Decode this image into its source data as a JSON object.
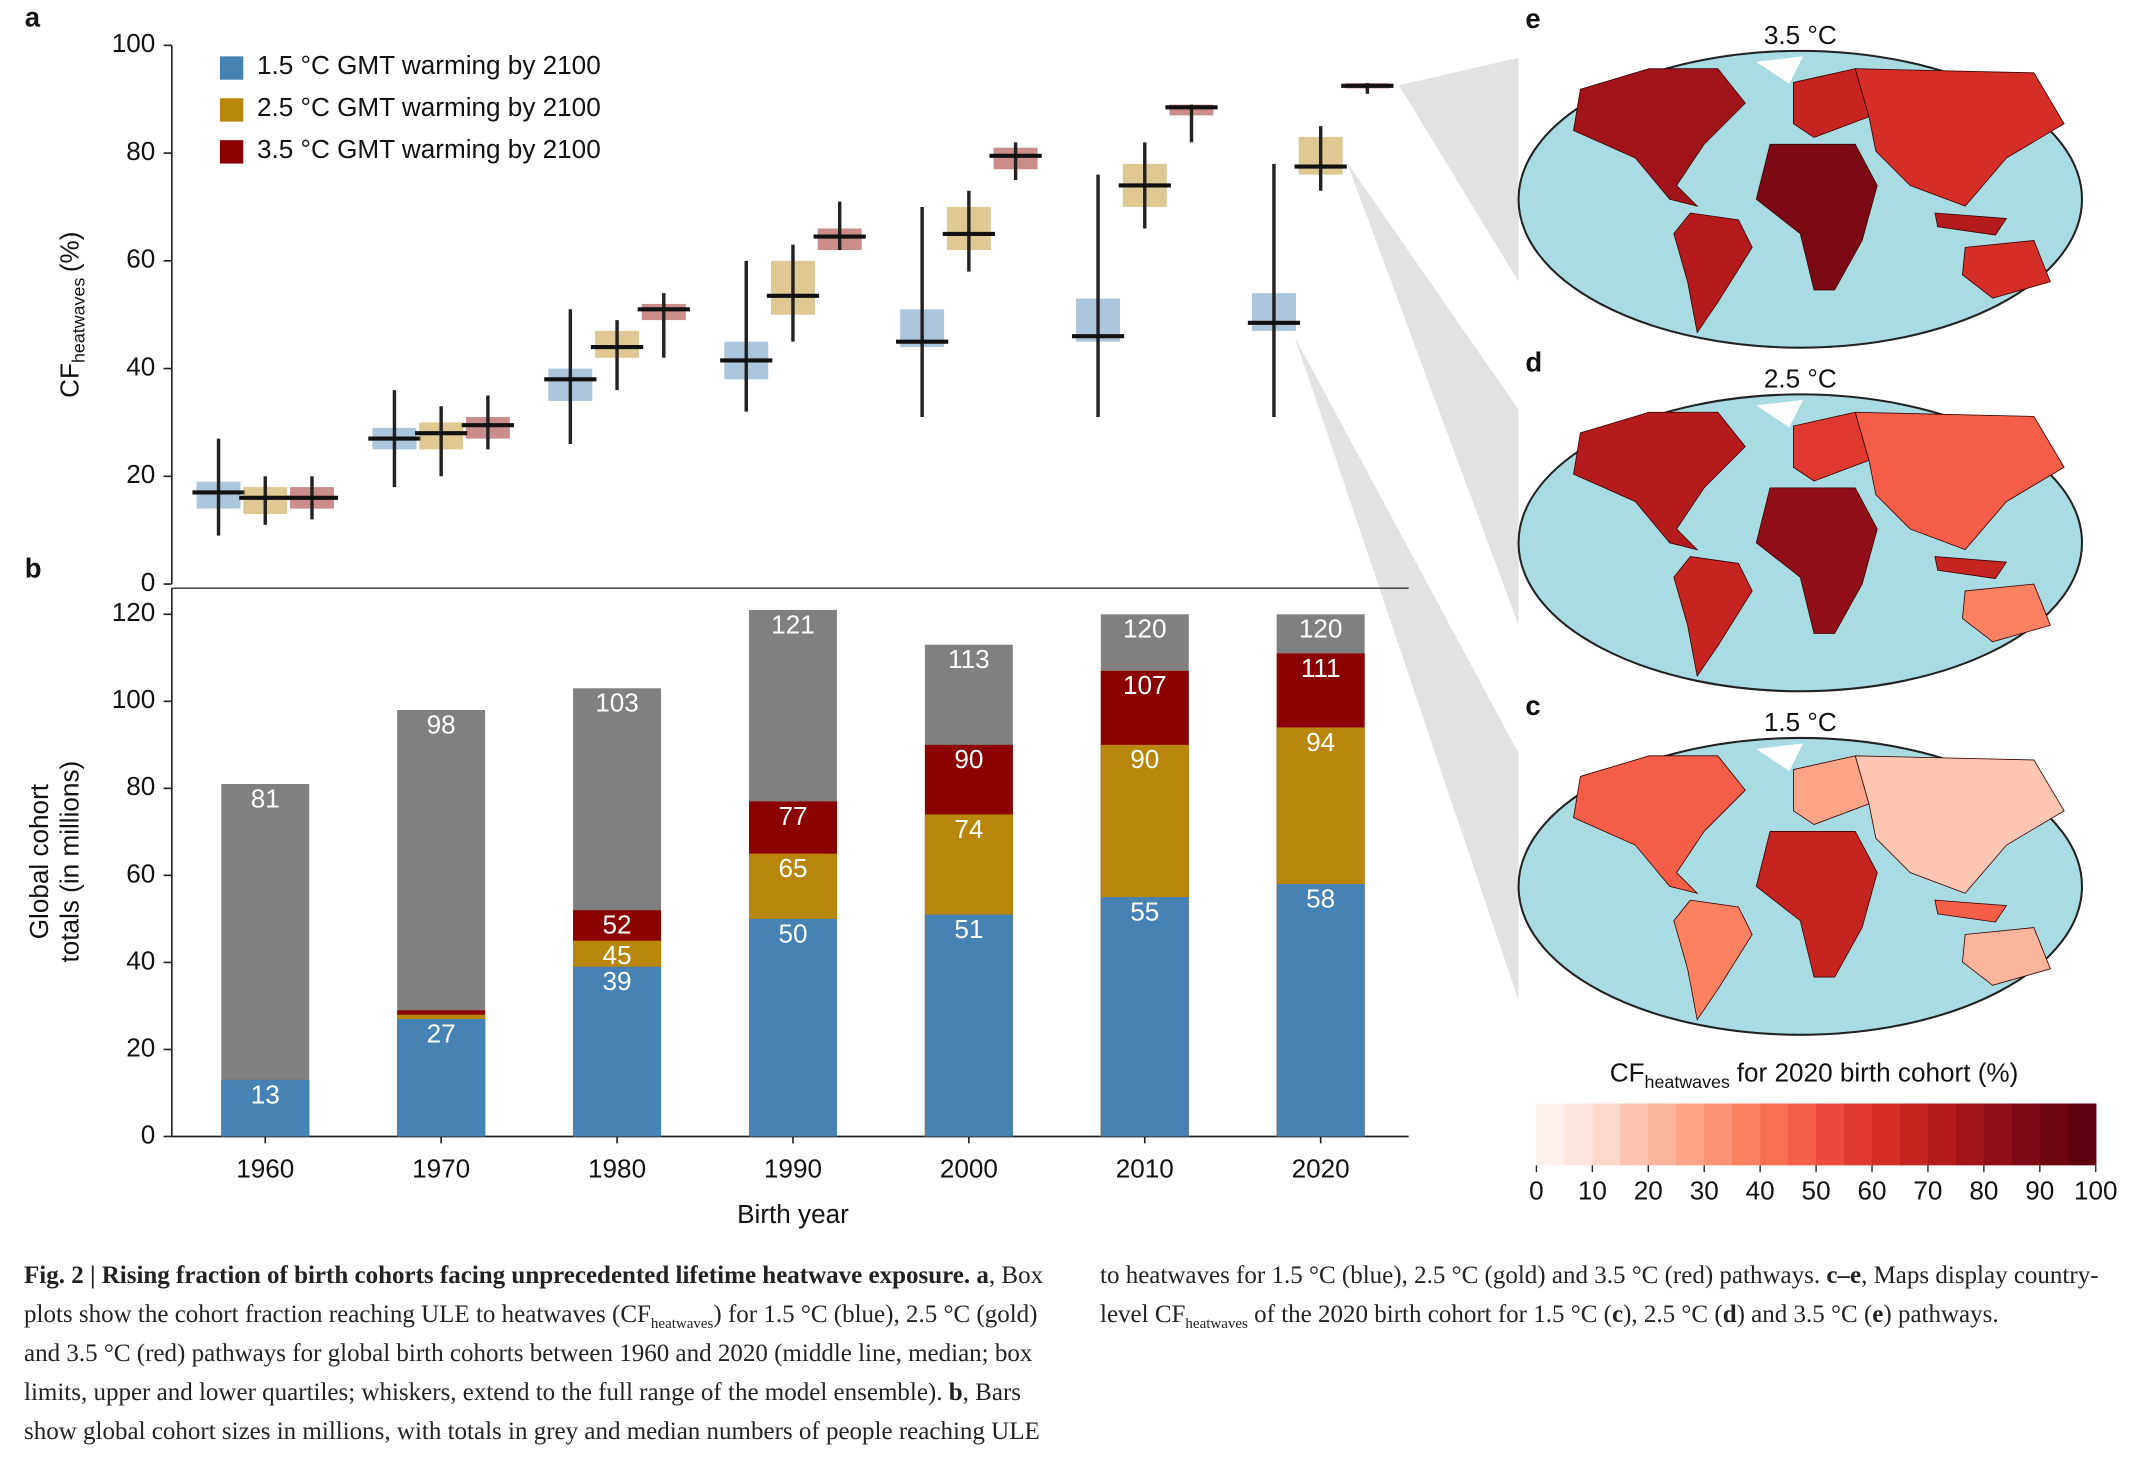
{
  "chart_data": [
    {
      "type": "box",
      "label": "a",
      "ylabel": {
        "text": "CF",
        "sub": "heatwaves",
        "unit": "(%)"
      },
      "ylim": [
        0,
        100
      ],
      "yticks": [
        0,
        20,
        40,
        60,
        80,
        100
      ],
      "legend": "upper left",
      "series": [
        {
          "name": "1.5 °C GMT warming by 2100",
          "color": "#4682b4",
          "values": [
            {
              "low": 9,
              "q1": 14,
              "median": 17,
              "q3": 19,
              "high": 27
            },
            {
              "low": 18,
              "q1": 25,
              "median": 27,
              "q3": 29,
              "high": 36
            },
            {
              "low": 26,
              "q1": 34,
              "median": 38,
              "q3": 40,
              "high": 51
            },
            {
              "low": 32,
              "q1": 38,
              "median": 41.5,
              "q3": 45,
              "high": 60
            },
            {
              "low": 31,
              "q1": 44,
              "median": 45,
              "q3": 51,
              "high": 70
            },
            {
              "low": 31,
              "q1": 45,
              "median": 46,
              "q3": 53,
              "high": 76
            },
            {
              "low": 31,
              "q1": 47,
              "median": 48.5,
              "q3": 54,
              "high": 78
            }
          ]
        },
        {
          "name": "2.5 °C GMT warming by 2100",
          "color": "#b8860b",
          "values": [
            {
              "low": 11,
              "q1": 13,
              "median": 16,
              "q3": 18,
              "high": 20
            },
            {
              "low": 20,
              "q1": 25,
              "median": 28,
              "q3": 30,
              "high": 33
            },
            {
              "low": 36,
              "q1": 42,
              "median": 44,
              "q3": 47,
              "high": 49
            },
            {
              "low": 45,
              "q1": 50,
              "median": 53.5,
              "q3": 60,
              "high": 63
            },
            {
              "low": 58,
              "q1": 62,
              "median": 65,
              "q3": 70,
              "high": 73
            },
            {
              "low": 66,
              "q1": 70,
              "median": 74,
              "q3": 78,
              "high": 82
            },
            {
              "low": 73,
              "q1": 76,
              "median": 77.5,
              "q3": 83,
              "high": 85
            }
          ]
        },
        {
          "name": "3.5 °C GMT warming by 2100",
          "color": "#8b0000",
          "values": [
            {
              "low": 12,
              "q1": 14,
              "median": 16,
              "q3": 18,
              "high": 20
            },
            {
              "low": 25,
              "q1": 27,
              "median": 29.5,
              "q3": 31,
              "high": 35
            },
            {
              "low": 42,
              "q1": 49,
              "median": 51,
              "q3": 52,
              "high": 54
            },
            {
              "low": 62,
              "q1": 62,
              "median": 64.5,
              "q3": 66,
              "high": 71
            },
            {
              "low": 75,
              "q1": 77,
              "median": 79.5,
              "q3": 81,
              "high": 82
            },
            {
              "low": 82,
              "q1": 87,
              "median": 88.5,
              "q3": 89,
              "high": 89
            },
            {
              "low": 91,
              "q1": 92,
              "median": 92.5,
              "q3": 93,
              "high": 93
            }
          ]
        }
      ]
    },
    {
      "type": "bar",
      "label": "b",
      "barmode": "overlay",
      "categories": [
        "1960",
        "1970",
        "1980",
        "1990",
        "2000",
        "2010",
        "2020"
      ],
      "xlabel": "Birth year",
      "ylabel": [
        "Global cohort",
        "totals (in millions)"
      ],
      "ylim": [
        0,
        126
      ],
      "yticks": [
        0,
        20,
        40,
        60,
        80,
        100,
        120
      ],
      "series": [
        {
          "color": "#4682b4",
          "values": [
            13,
            27,
            39,
            50,
            51,
            55,
            58
          ],
          "value_labels": [
            "13",
            "27",
            "39",
            "50",
            "51",
            "55",
            "58"
          ]
        },
        {
          "color": "#b8860b",
          "values": [
            13,
            28,
            45,
            65,
            74,
            90,
            94
          ],
          "value_labels": [
            null,
            null,
            "45",
            "65",
            "74",
            "90",
            "94"
          ]
        },
        {
          "color": "#8b0000",
          "values": [
            13,
            29,
            52,
            77,
            90,
            107,
            111
          ],
          "value_labels": [
            null,
            null,
            "52",
            "77",
            "90",
            "107",
            "111"
          ]
        },
        {
          "color": "#808080",
          "values": [
            81,
            98,
            103,
            121,
            113,
            120,
            120
          ]
        }
      ]
    },
    {
      "type": "colorbar",
      "title": {
        "text": "CF",
        "sub": "heatwaves",
        "rest": "for 2020 birth cohort (%)"
      },
      "xlim": [
        0,
        100
      ],
      "xticks": [
        0,
        10,
        20,
        30,
        40,
        50,
        60,
        70,
        80,
        90,
        100
      ],
      "colors": [
        "#fff0ec",
        "#fee5dd",
        "#fdd7c9",
        "#fcc6b2",
        "#fcb59d",
        "#fca487",
        "#fc9374",
        "#fb8161",
        "#f86f52",
        "#f45d47",
        "#ec4a3b",
        "#e03a30",
        "#d42e27",
        "#c52421",
        "#b51b1d",
        "#a3141a",
        "#900e17",
        "#7c0914",
        "#6e0612",
        "#5f0310"
      ]
    }
  ],
  "maps": [
    {
      "label": "e",
      "title": "3.5 °C"
    },
    {
      "label": "d",
      "title": "2.5 °C"
    },
    {
      "label": "c",
      "title": "1.5 °C"
    }
  ],
  "caption": {
    "runs": [
      {
        "text": "Fig. 2 | Rising fraction of birth cohorts facing unprecedented lifetime heatwave exposure. a",
        "style": "bold"
      },
      {
        "text": ", Box plots show the cohort fraction reaching ULE to heatwaves (CF"
      },
      {
        "text": "heatwaves",
        "style": "sub"
      },
      {
        "text": ") for 1.5 °C (blue), 2.5 °C (gold) and 3.5 °C (red) pathways for global birth cohorts between 1960 and 2020 (middle line, median; box limits, upper and lower quartiles; whiskers, extend to the full range of the model ensemble). "
      },
      {
        "text": "b",
        "style": "bold"
      },
      {
        "text": ", Bars show global cohort sizes in millions, with totals in grey and median numbers of people reaching ULE to heatwaves for 1.5 °C (blue), 2.5 °C (gold) and 3.5 °C (red) pathways. "
      },
      {
        "text": "c–e",
        "style": "bold"
      },
      {
        "text": ", Maps display country-level CF"
      },
      {
        "text": "heatwaves",
        "style": "sub"
      },
      {
        "text": " of the 2020 birth cohort for 1.5 °C ("
      },
      {
        "text": "c",
        "style": "bold"
      },
      {
        "text": "), 2.5 °C ("
      },
      {
        "text": "d",
        "style": "bold"
      },
      {
        "text": ") and 3.5 °C ("
      },
      {
        "text": "e",
        "style": "bold"
      },
      {
        "text": ") pathways."
      }
    ]
  }
}
